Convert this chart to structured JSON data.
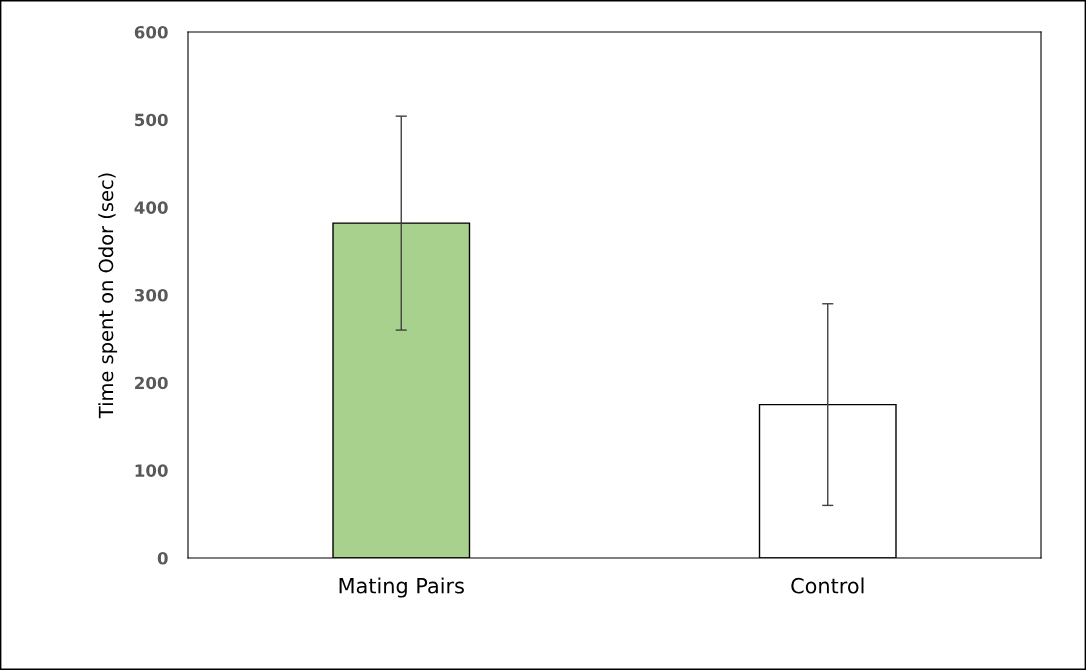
{
  "chart_data": {
    "type": "bar",
    "ylabel": "Time spent on Odor (sec)",
    "categories": [
      "Mating Pairs",
      "Control"
    ],
    "values": [
      382,
      175
    ],
    "colors": [
      "#a9d18e",
      "#ffffff"
    ],
    "errors": [
      122,
      115
    ],
    "ylim": [
      0,
      600
    ],
    "yticks": [
      0,
      100,
      200,
      300,
      400,
      500,
      600
    ],
    "grid": false,
    "legend": false
  }
}
